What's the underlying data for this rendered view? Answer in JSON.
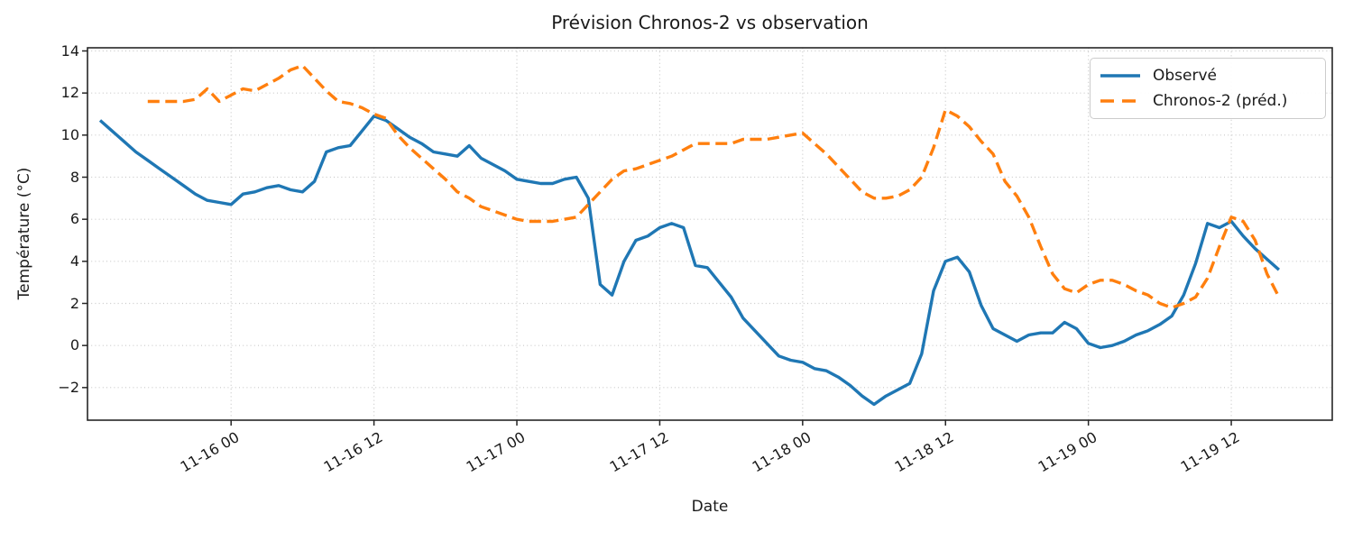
{
  "chart_data": {
    "type": "line",
    "title": "Prévision Chronos-2 vs observation",
    "xlabel": "Date",
    "ylabel": "Température (°C)",
    "grid": "dotted",
    "legend_position": "upper right",
    "ylim": [
      -3.55,
      14.15
    ],
    "yticks": [
      -2,
      0,
      2,
      4,
      6,
      8,
      10,
      12,
      14
    ],
    "x_axis": {
      "time_origin": "11-15 13:00",
      "xlim_hour_offsets": [
        -1.06,
        103.48
      ],
      "tick_labels": [
        "11-16 00",
        "11-16 12",
        "11-17 00",
        "11-17 12",
        "11-18 00",
        "11-18 12",
        "11-19 00",
        "11-19 12"
      ],
      "tick_hour_offsets": [
        11,
        23,
        35,
        47,
        59,
        71,
        83,
        95
      ]
    },
    "colors": {
      "observed": "#1f77b4",
      "predicted": "#ff7f0e",
      "grid": "#c9c9c9",
      "spine": "#262626",
      "text": "#1a1a1a",
      "legend_border": "#cccccc"
    },
    "series": [
      {
        "name": "Observé",
        "color": "#1f77b4",
        "style": "solid",
        "start": "11-15 13:00",
        "start_hour_offset": 0,
        "step_hours": 1,
        "values": [
          10.7,
          10.2,
          9.7,
          9.2,
          8.8,
          8.4,
          8.0,
          7.6,
          7.2,
          6.9,
          6.8,
          6.7,
          7.2,
          7.3,
          7.5,
          7.6,
          7.4,
          7.3,
          7.8,
          9.2,
          9.4,
          9.5,
          10.2,
          10.9,
          10.7,
          10.3,
          9.9,
          9.6,
          9.2,
          9.1,
          9.0,
          9.5,
          8.9,
          8.6,
          8.3,
          7.9,
          7.8,
          7.7,
          7.7,
          7.9,
          8.0,
          7.0,
          2.9,
          2.4,
          4.0,
          5.0,
          5.2,
          5.6,
          5.8,
          5.6,
          3.8,
          3.7,
          3.0,
          2.3,
          1.3,
          0.7,
          0.1,
          -0.5,
          -0.7,
          -0.8,
          -1.1,
          -1.2,
          -1.5,
          -1.9,
          -2.4,
          -2.8,
          -2.4,
          -2.1,
          -1.8,
          -0.4,
          2.6,
          4.0,
          4.2,
          3.5,
          1.9,
          0.8,
          0.5,
          0.2,
          0.5,
          0.6,
          0.6,
          1.1,
          0.8,
          0.1,
          -0.1,
          0.0,
          0.2,
          0.5,
          0.7,
          1.0,
          1.4,
          2.4,
          3.9,
          5.8,
          5.6,
          5.9,
          5.2,
          4.6,
          4.1,
          3.6
        ]
      },
      {
        "name": "Chronos-2 (préd.)",
        "color": "#ff7f0e",
        "style": "dashed",
        "start": "11-15 17:00",
        "start_hour_offset": 4,
        "step_hours": 1,
        "values": [
          11.6,
          11.6,
          11.6,
          11.6,
          11.7,
          12.2,
          11.6,
          11.9,
          12.2,
          12.1,
          12.4,
          12.7,
          13.1,
          13.3,
          12.7,
          12.1,
          11.6,
          11.5,
          11.3,
          11.0,
          10.8,
          10.0,
          9.4,
          8.9,
          8.4,
          7.9,
          7.3,
          7.0,
          6.6,
          6.4,
          6.2,
          6.0,
          5.9,
          5.9,
          5.9,
          6.0,
          6.1,
          6.7,
          7.3,
          7.9,
          8.3,
          8.4,
          8.6,
          8.8,
          9.0,
          9.3,
          9.6,
          9.6,
          9.6,
          9.6,
          9.8,
          9.8,
          9.8,
          9.9,
          10.0,
          10.1,
          9.6,
          9.1,
          8.5,
          7.9,
          7.3,
          7.0,
          7.0,
          7.1,
          7.4,
          8.0,
          9.4,
          11.2,
          10.9,
          10.4,
          9.7,
          9.1,
          7.8,
          7.1,
          6.1,
          4.7,
          3.4,
          2.7,
          2.5,
          2.9,
          3.1,
          3.1,
          2.9,
          2.6,
          2.4,
          2.0,
          1.8,
          2.0,
          2.3,
          3.2,
          4.7,
          6.1,
          5.9,
          5.0,
          3.4,
          2.3
        ]
      }
    ]
  }
}
